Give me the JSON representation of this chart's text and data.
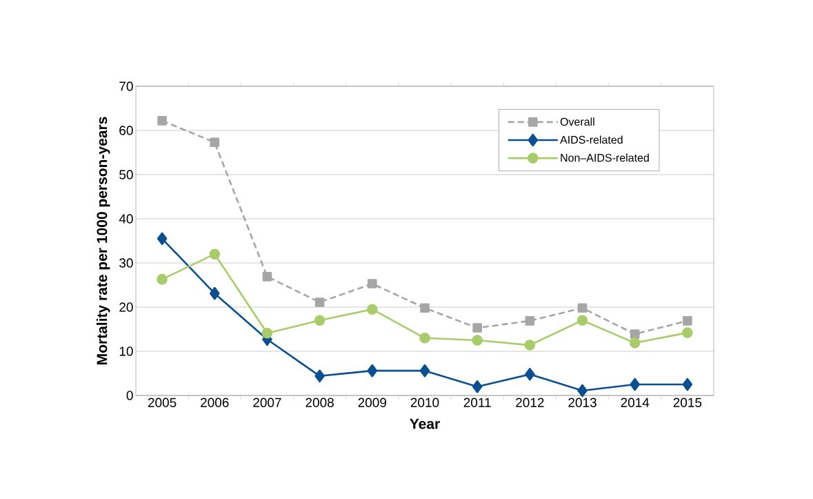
{
  "chart_data": {
    "type": "line",
    "xlabel": "Year",
    "ylabel": "Mortality rate per 1000 person-years",
    "categories": [
      "2005",
      "2006",
      "2007",
      "2008",
      "2009",
      "2010",
      "2011",
      "2012",
      "2013",
      "2014",
      "2015"
    ],
    "series": [
      {
        "name": "Overall",
        "color": "#a6a6a6",
        "marker": "square",
        "line_style": "dashed",
        "values": [
          62.2,
          57.3,
          26.9,
          21.1,
          25.3,
          19.8,
          15.3,
          16.9,
          19.8,
          13.9,
          16.9
        ]
      },
      {
        "name": "AIDS-related",
        "color": "#0a4f8f",
        "marker": "diamond",
        "line_style": "solid",
        "values": [
          35.5,
          23.1,
          12.7,
          4.4,
          5.6,
          5.6,
          2.0,
          4.8,
          1.1,
          2.5,
          2.5
        ]
      },
      {
        "name": "Non–AIDS-related",
        "color": "#a9cc6b",
        "marker": "circle",
        "line_style": "solid",
        "values": [
          26.3,
          32.0,
          14.1,
          17.0,
          19.5,
          13.0,
          12.5,
          11.4,
          17.0,
          11.9,
          14.2
        ]
      }
    ],
    "ylim": [
      0,
      70
    ],
    "yticks": [
      0,
      10,
      20,
      30,
      40,
      50,
      60,
      70
    ],
    "grid": "y",
    "legend": "top right"
  }
}
